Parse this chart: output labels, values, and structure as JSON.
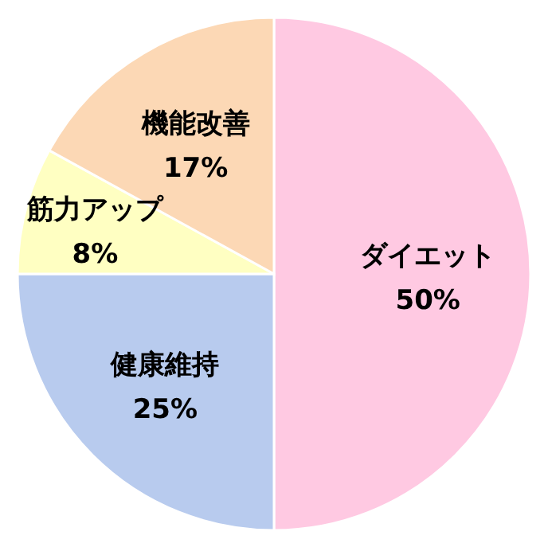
{
  "chart_data": {
    "type": "pie",
    "categories": [
      "ダイエット",
      "健康維持",
      "筋力アップ",
      "機能改善"
    ],
    "values": [
      50,
      25,
      8,
      17
    ],
    "value_labels": [
      "50%",
      "25%",
      "8%",
      "17%"
    ],
    "colors": [
      "#ffc9e2",
      "#b8cbee",
      "#ffffc2",
      "#fcd8b5"
    ]
  }
}
